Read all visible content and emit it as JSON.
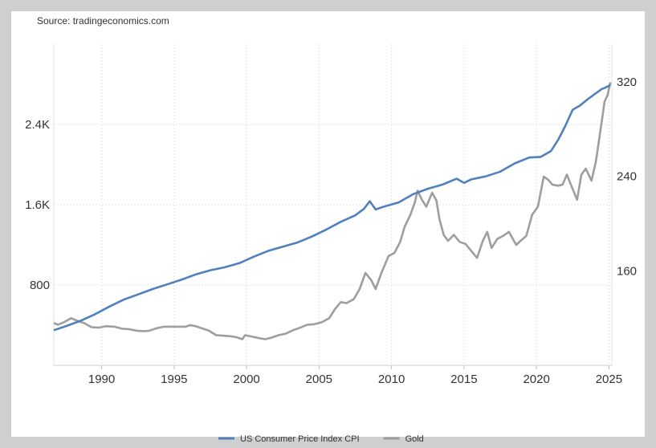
{
  "source": "Source: tradingeconomics.com",
  "chart_data": {
    "type": "line",
    "grid": true,
    "legend_position": "bottom-center",
    "x_ticks": [
      "1990",
      "1995",
      "2000",
      "2005",
      "2010",
      "2015",
      "2020",
      "2025"
    ],
    "y_left_ticks": [
      "800",
      "1.6K",
      "2.4K"
    ],
    "y_right_ticks": [
      "160",
      "240",
      "320"
    ],
    "y_left_range": [
      0,
      3200
    ],
    "y_right_range": [
      80,
      352
    ],
    "x_range": [
      1986.7,
      2025.2
    ],
    "series": [
      {
        "name": "Gold",
        "axis": "left",
        "color": "#9e9e9e",
        "points": [
          [
            1986.7,
            420
          ],
          [
            1987.0,
            405
          ],
          [
            1987.4,
            430
          ],
          [
            1987.9,
            470
          ],
          [
            1988.3,
            445
          ],
          [
            1988.8,
            420
          ],
          [
            1989.3,
            380
          ],
          [
            1989.8,
            375
          ],
          [
            1990.3,
            390
          ],
          [
            1990.9,
            385
          ],
          [
            1991.4,
            365
          ],
          [
            1991.9,
            360
          ],
          [
            1992.4,
            345
          ],
          [
            1992.9,
            340
          ],
          [
            1993.3,
            345
          ],
          [
            1993.8,
            370
          ],
          [
            1994.3,
            385
          ],
          [
            1994.8,
            385
          ],
          [
            1995.3,
            385
          ],
          [
            1995.8,
            385
          ],
          [
            1996.1,
            400
          ],
          [
            1996.5,
            390
          ],
          [
            1996.9,
            370
          ],
          [
            1997.4,
            345
          ],
          [
            1997.9,
            300
          ],
          [
            1998.4,
            295
          ],
          [
            1998.9,
            290
          ],
          [
            1999.3,
            280
          ],
          [
            1999.7,
            260
          ],
          [
            1999.9,
            300
          ],
          [
            2000.4,
            285
          ],
          [
            2000.9,
            270
          ],
          [
            2001.3,
            260
          ],
          [
            2001.7,
            275
          ],
          [
            2002.2,
            300
          ],
          [
            2002.7,
            315
          ],
          [
            2003.2,
            350
          ],
          [
            2003.7,
            375
          ],
          [
            2004.2,
            405
          ],
          [
            2004.7,
            410
          ],
          [
            2005.2,
            430
          ],
          [
            2005.7,
            470
          ],
          [
            2006.1,
            560
          ],
          [
            2006.5,
            630
          ],
          [
            2006.9,
            620
          ],
          [
            2007.4,
            660
          ],
          [
            2007.8,
            760
          ],
          [
            2008.2,
            920
          ],
          [
            2008.6,
            850
          ],
          [
            2008.9,
            760
          ],
          [
            2009.3,
            920
          ],
          [
            2009.8,
            1090
          ],
          [
            2010.2,
            1120
          ],
          [
            2010.6,
            1230
          ],
          [
            2010.9,
            1380
          ],
          [
            2011.3,
            1500
          ],
          [
            2011.6,
            1620
          ],
          [
            2011.8,
            1740
          ],
          [
            2012.1,
            1650
          ],
          [
            2012.4,
            1580
          ],
          [
            2012.8,
            1720
          ],
          [
            2013.1,
            1640
          ],
          [
            2013.3,
            1460
          ],
          [
            2013.6,
            1300
          ],
          [
            2013.9,
            1240
          ],
          [
            2014.3,
            1300
          ],
          [
            2014.7,
            1230
          ],
          [
            2015.1,
            1210
          ],
          [
            2015.5,
            1140
          ],
          [
            2015.9,
            1070
          ],
          [
            2016.3,
            1240
          ],
          [
            2016.6,
            1330
          ],
          [
            2016.9,
            1170
          ],
          [
            2017.3,
            1260
          ],
          [
            2017.7,
            1290
          ],
          [
            2018.1,
            1330
          ],
          [
            2018.6,
            1200
          ],
          [
            2018.9,
            1240
          ],
          [
            2019.3,
            1290
          ],
          [
            2019.7,
            1500
          ],
          [
            2020.1,
            1580
          ],
          [
            2020.5,
            1880
          ],
          [
            2020.8,
            1850
          ],
          [
            2021.1,
            1800
          ],
          [
            2021.5,
            1790
          ],
          [
            2021.8,
            1800
          ],
          [
            2022.1,
            1900
          ],
          [
            2022.4,
            1790
          ],
          [
            2022.8,
            1650
          ],
          [
            2023.1,
            1900
          ],
          [
            2023.4,
            1960
          ],
          [
            2023.8,
            1840
          ],
          [
            2024.1,
            2030
          ],
          [
            2024.4,
            2330
          ],
          [
            2024.7,
            2630
          ],
          [
            2024.9,
            2690
          ],
          [
            2025.1,
            2820
          ]
        ]
      },
      {
        "name": "US Consumer Price Index CPI",
        "axis": "right",
        "color": "#4f81bd",
        "points": [
          [
            1986.7,
            109.7
          ],
          [
            1987.5,
            113.0
          ],
          [
            1988.5,
            117.5
          ],
          [
            1989.5,
            123.0
          ],
          [
            1990.5,
            129.5
          ],
          [
            1991.5,
            135.5
          ],
          [
            1992.5,
            140.0
          ],
          [
            1993.5,
            144.5
          ],
          [
            1994.5,
            148.5
          ],
          [
            1995.5,
            152.5
          ],
          [
            1996.5,
            157.0
          ],
          [
            1997.5,
            160.5
          ],
          [
            1998.5,
            163.0
          ],
          [
            1999.5,
            166.5
          ],
          [
            2000.5,
            172.0
          ],
          [
            2001.5,
            177.0
          ],
          [
            2002.5,
            180.5
          ],
          [
            2003.5,
            184.0
          ],
          [
            2004.5,
            189.0
          ],
          [
            2005.5,
            195.0
          ],
          [
            2006.5,
            201.5
          ],
          [
            2007.5,
            207.0
          ],
          [
            2008.1,
            212.5
          ],
          [
            2008.5,
            219.0
          ],
          [
            2008.9,
            212.0
          ],
          [
            2009.5,
            214.5
          ],
          [
            2010.5,
            218.0
          ],
          [
            2011.5,
            225.0
          ],
          [
            2012.5,
            229.5
          ],
          [
            2013.5,
            233.0
          ],
          [
            2014.5,
            238.0
          ],
          [
            2015.0,
            234.5
          ],
          [
            2015.5,
            237.5
          ],
          [
            2016.5,
            240.0
          ],
          [
            2017.5,
            244.0
          ],
          [
            2018.5,
            251.0
          ],
          [
            2019.5,
            256.0
          ],
          [
            2020.3,
            256.5
          ],
          [
            2021.0,
            261.5
          ],
          [
            2021.5,
            271.0
          ],
          [
            2022.0,
            283.0
          ],
          [
            2022.5,
            296.5
          ],
          [
            2023.0,
            300.0
          ],
          [
            2023.5,
            305.0
          ],
          [
            2024.0,
            309.5
          ],
          [
            2024.5,
            314.0
          ],
          [
            2024.8,
            315.5
          ],
          [
            2025.1,
            317.5
          ]
        ]
      }
    ]
  }
}
